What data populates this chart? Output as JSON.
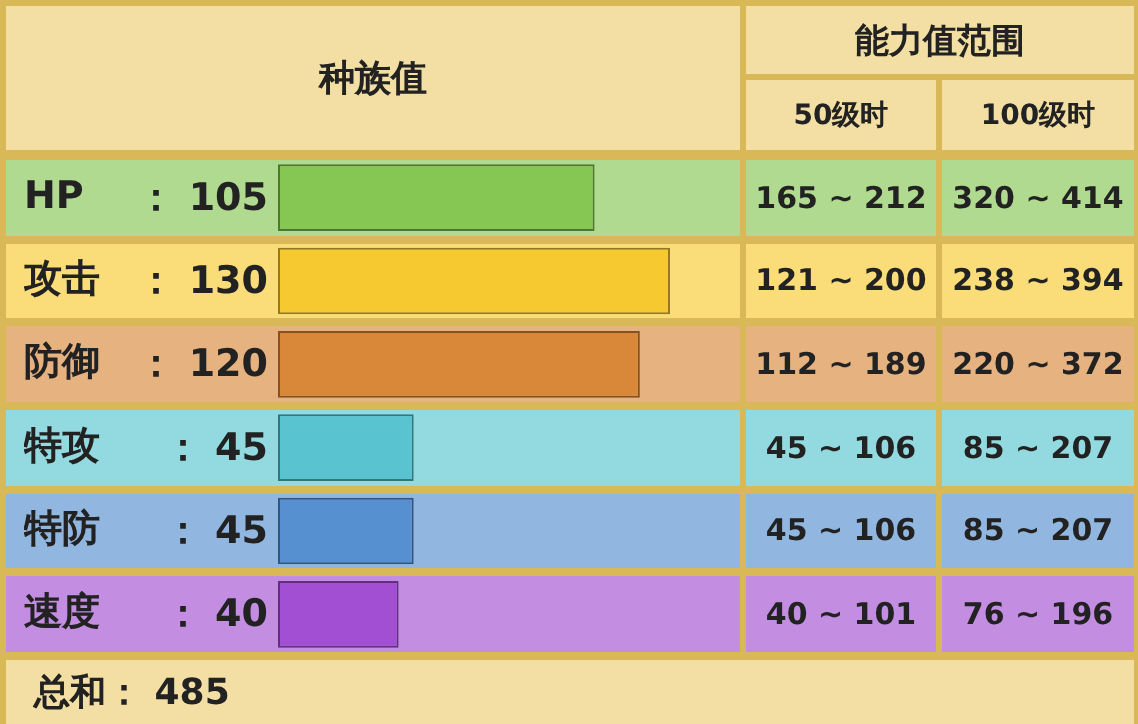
{
  "chart_data": {
    "type": "bar",
    "orientation": "horizontal",
    "title": "种族值",
    "categories": [
      "HP",
      "攻击",
      "防御",
      "特攻",
      "特防",
      "速度"
    ],
    "values": [
      105,
      130,
      120,
      45,
      45,
      40
    ],
    "colors": [
      "#86c653",
      "#f7c931",
      "#d9883a",
      "#59c4d0",
      "#5690d0",
      "#a24fd3"
    ],
    "value_labels": [
      "： 105",
      "： 130",
      "： 120",
      "： 45",
      "： 45",
      "： 40"
    ],
    "annotations": [
      "能力值范围",
      "50级时",
      "100级时",
      "165 ~ 212",
      "320 ~ 414",
      "121 ~ 200",
      "238 ~ 394",
      "112 ~ 189",
      "220 ~ 372",
      "45 ~ 106",
      "85 ~ 207",
      "45 ~ 106",
      "85 ~ 207",
      "40 ~ 101",
      "76 ~ 196",
      "总和： 485"
    ]
  }
}
